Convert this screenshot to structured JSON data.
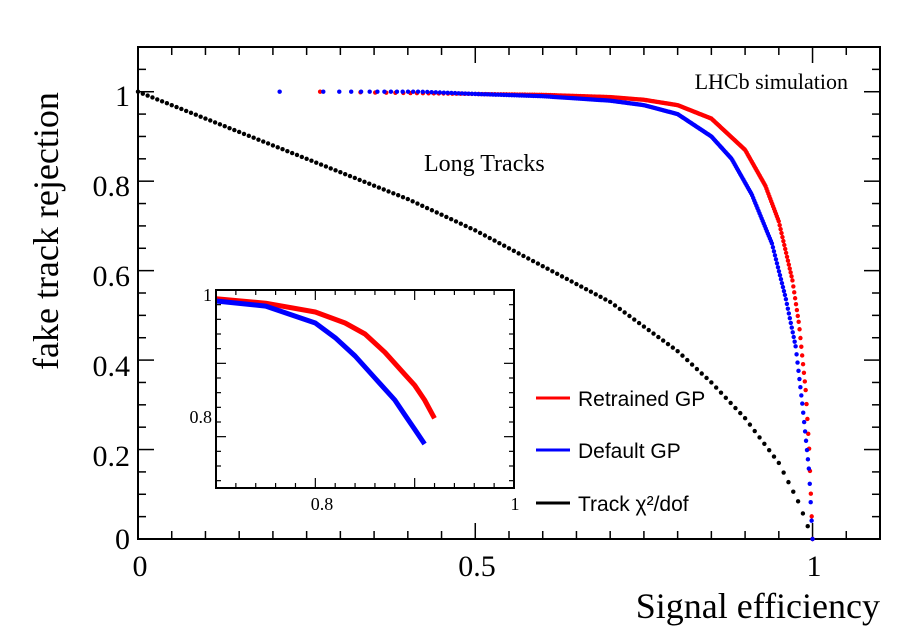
{
  "chart_data": {
    "type": "line",
    "xlabel": "Signal efficiency",
    "ylabel": "fake track rejection",
    "xlim": [
      0,
      1.1
    ],
    "ylim": [
      0,
      1.1
    ],
    "x_ticks": [
      "0",
      "0.5",
      "1"
    ],
    "y_ticks": [
      "0",
      "0.2",
      "0.4",
      "0.6",
      "0.8",
      "1"
    ],
    "annotations": {
      "experiment": "LHCb simulation",
      "sample": "Long Tracks"
    },
    "legend": {
      "placement": "bottom-right"
    },
    "series": [
      {
        "name": "Retrained GP",
        "color": "#ff0000",
        "x": [
          0.27,
          0.5,
          0.6,
          0.7,
          0.75,
          0.8,
          0.85,
          0.9,
          0.93,
          0.95,
          0.97,
          0.98,
          0.99,
          0.995,
          1.0
        ],
        "y": [
          1.0,
          0.995,
          0.993,
          0.988,
          0.982,
          0.97,
          0.94,
          0.87,
          0.79,
          0.71,
          0.58,
          0.48,
          0.33,
          0.2,
          0.0
        ]
      },
      {
        "name": "Default GP",
        "color": "#0000ff",
        "x": [
          0.21,
          0.32,
          0.38,
          0.42,
          0.5,
          0.6,
          0.7,
          0.75,
          0.8,
          0.85,
          0.88,
          0.91,
          0.94,
          0.96,
          0.975,
          0.985,
          0.995,
          1.0
        ],
        "y": [
          1.0,
          1.0,
          1.0,
          1.0,
          0.995,
          0.99,
          0.98,
          0.97,
          0.95,
          0.9,
          0.85,
          0.77,
          0.66,
          0.54,
          0.43,
          0.3,
          0.15,
          0.0
        ]
      },
      {
        "name": "Track χ²/dof",
        "color": "#000000",
        "x": [
          0.0,
          0.1,
          0.2,
          0.3,
          0.4,
          0.5,
          0.6,
          0.7,
          0.8,
          0.85,
          0.9,
          0.95,
          0.98,
          1.0
        ],
        "y": [
          1.0,
          0.94,
          0.88,
          0.82,
          0.76,
          0.69,
          0.61,
          0.53,
          0.42,
          0.35,
          0.27,
          0.17,
          0.08,
          0.0
        ]
      }
    ],
    "inset": {
      "xlim": [
        0.7,
        1.0
      ],
      "ylim": [
        0.73,
        1.0
      ],
      "x_ticks": [
        "0.8",
        "1"
      ],
      "y_ticks": [
        "0.8",
        "1"
      ],
      "series": [
        {
          "name": "Retrained GP",
          "color": "#ff0000",
          "x": [
            0.7,
            0.75,
            0.8,
            0.83,
            0.85,
            0.87,
            0.88,
            0.89,
            0.9,
            0.91,
            0.92
          ],
          "y": [
            0.988,
            0.982,
            0.97,
            0.955,
            0.94,
            0.915,
            0.9,
            0.885,
            0.87,
            0.85,
            0.825
          ]
        },
        {
          "name": "Default GP",
          "color": "#0000ff",
          "x": [
            0.7,
            0.75,
            0.8,
            0.82,
            0.84,
            0.86,
            0.88,
            0.89,
            0.9,
            0.91
          ],
          "y": [
            0.985,
            0.978,
            0.955,
            0.935,
            0.91,
            0.88,
            0.85,
            0.83,
            0.81,
            0.79
          ]
        }
      ]
    }
  }
}
